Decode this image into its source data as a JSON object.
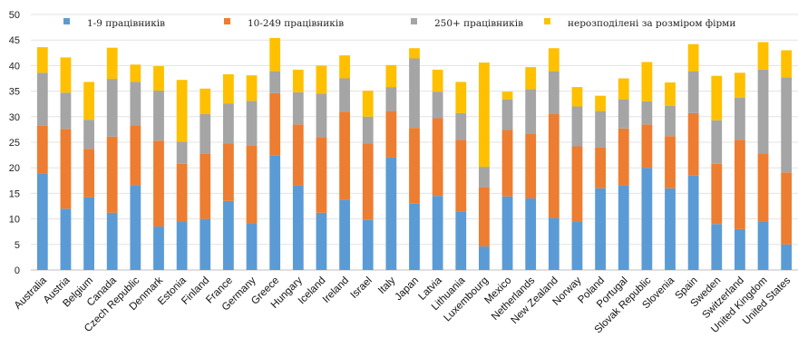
{
  "chart_data": {
    "type": "bar",
    "stacked": true,
    "title": "",
    "xlabel": "",
    "ylabel": "",
    "ylim": [
      0,
      50
    ],
    "yticks": [
      0,
      5,
      10,
      15,
      20,
      25,
      30,
      35,
      40,
      45,
      50
    ],
    "grid": "horizontal",
    "legend_position": "top",
    "categories": [
      "Australia",
      "Austria",
      "Belgium",
      "Canada",
      "Czech Republic",
      "Denmark",
      "Estonia",
      "Finland",
      "France",
      "Germany",
      "Greece",
      "Hungary",
      "Iceland",
      "Ireland",
      "Israel",
      "Italy",
      "Japan",
      "Latvia",
      "Lithuania",
      "Luxembourg",
      "Mexico",
      "Netherlands",
      "New Zealand",
      "Norway",
      "Poland",
      "Portugal",
      "Slovak Republic",
      "Slovenia",
      "Spain",
      "Sweden",
      "Switzerland",
      "United Kingdom",
      "United States"
    ],
    "series": [
      {
        "name": "1-9 працівників",
        "color": "#5B9BD5",
        "values": [
          18.8,
          12.0,
          14.2,
          11.2,
          16.6,
          8.5,
          9.4,
          10.0,
          13.5,
          9.2,
          22.4,
          16.5,
          11.2,
          13.8,
          9.8,
          22.0,
          13.0,
          14.5,
          11.5,
          4.6,
          14.4,
          14.0,
          10.2,
          9.4,
          16.0,
          16.5,
          20.0,
          16.0,
          18.5,
          9.0,
          8.0,
          9.5,
          5.0
        ]
      },
      {
        "name": "10-249 працівників",
        "color": "#ED7D31",
        "values": [
          9.4,
          15.6,
          9.5,
          14.9,
          11.7,
          16.8,
          11.4,
          12.7,
          11.3,
          15.1,
          12.2,
          12.0,
          14.8,
          17.2,
          15.0,
          9.1,
          14.8,
          15.2,
          14.0,
          11.6,
          13.0,
          12.6,
          20.3,
          14.8,
          8.0,
          11.2,
          8.5,
          10.2,
          12.2,
          11.8,
          17.5,
          13.3,
          14.1
        ]
      },
      {
        "name": "250+ працівників",
        "color": "#A5A5A5",
        "values": [
          10.4,
          7.1,
          5.7,
          11.3,
          8.5,
          9.8,
          4.3,
          7.8,
          7.8,
          8.8,
          4.3,
          6.3,
          8.5,
          6.5,
          5.2,
          4.7,
          13.6,
          5.2,
          5.2,
          4.0,
          6.0,
          8.8,
          8.4,
          7.8,
          7.1,
          5.7,
          4.5,
          5.9,
          8.2,
          8.5,
          8.2,
          16.4,
          18.6
        ]
      },
      {
        "name": "нерозподілені за розміром фірми",
        "color": "#FFC000",
        "values": [
          5.0,
          6.9,
          7.4,
          6.1,
          3.4,
          4.8,
          12.1,
          5.0,
          5.7,
          5.0,
          6.5,
          4.4,
          5.5,
          4.5,
          5.1,
          4.3,
          2.0,
          4.3,
          6.1,
          20.4,
          1.5,
          4.3,
          4.5,
          3.8,
          3.0,
          4.1,
          7.7,
          4.6,
          5.3,
          8.7,
          4.9,
          5.4,
          5.3
        ]
      }
    ]
  }
}
